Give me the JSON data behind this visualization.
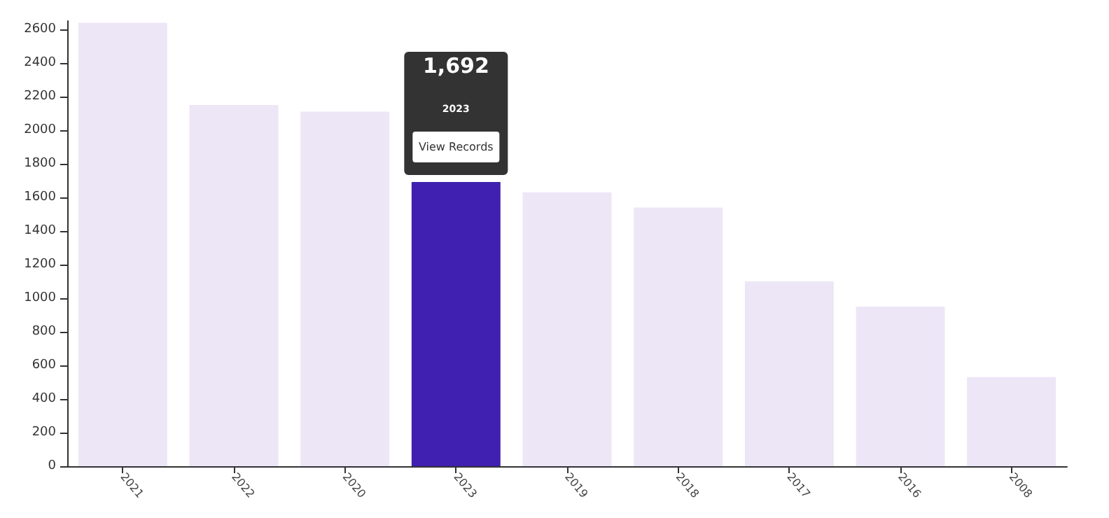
{
  "chart_data": {
    "type": "bar",
    "categories": [
      "2021",
      "2022",
      "2020",
      "2023",
      "2019",
      "2018",
      "2017",
      "2016",
      "2008"
    ],
    "values": [
      2640,
      2150,
      2110,
      1692,
      1630,
      1540,
      1100,
      950,
      530
    ],
    "colors": [
      "#ede6f7",
      "#ede6f7",
      "#ede6f7",
      "#4020b0",
      "#ede6f7",
      "#ede6f7",
      "#ede6f7",
      "#ede6f7",
      "#ede6f7"
    ],
    "ylim": [
      0,
      2650
    ],
    "yticks": [
      0,
      200,
      400,
      600,
      800,
      1000,
      1200,
      1400,
      1600,
      1800,
      2000,
      2200,
      2400,
      2600
    ],
    "grid": false,
    "annotations": [
      "1,692",
      "2023",
      "View Records"
    ]
  }
}
